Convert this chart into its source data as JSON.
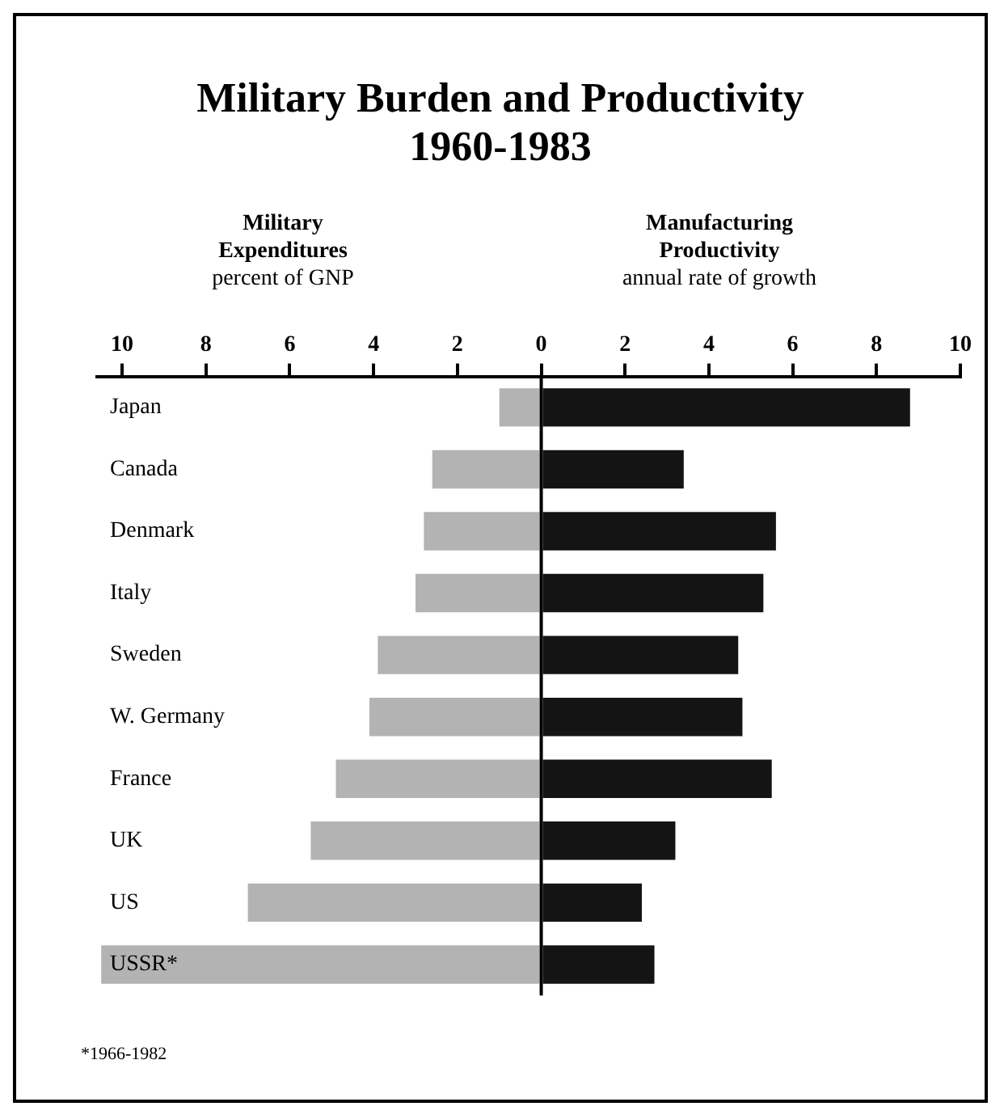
{
  "chart_data": {
    "type": "bar",
    "orientation": "horizontal",
    "stacked": true,
    "title": "Military Burden and Productivity\n1960-1983",
    "categories": [
      "Japan",
      "Canada",
      "Denmark",
      "Italy",
      "Sweden",
      "W. Germany",
      "France",
      "UK",
      "US",
      "USSR*"
    ],
    "series": [
      {
        "name": "Military Expenditures",
        "color": "#b3b3b3",
        "values": [
          -1.0,
          -2.6,
          -2.8,
          -3.0,
          -3.9,
          -4.1,
          -4.9,
          -5.5,
          -7.0,
          -10.5
        ]
      },
      {
        "name": "Manufacturing Productivity",
        "color": "#141414",
        "values": [
          8.8,
          3.4,
          5.6,
          5.3,
          4.7,
          4.8,
          5.5,
          3.2,
          2.4,
          2.7
        ]
      }
    ],
    "xlim": [
      -10.6,
      10
    ],
    "xticks": [
      {
        "value": -10,
        "label": "10"
      },
      {
        "value": -8,
        "label": "8"
      },
      {
        "value": -6,
        "label": "6"
      },
      {
        "value": -4,
        "label": "4"
      },
      {
        "value": -2,
        "label": "2"
      },
      0,
      2,
      4,
      6,
      8,
      10
    ],
    "ref_lines": [
      {
        "axis": "x",
        "value": 0,
        "color": "#000000"
      }
    ],
    "annotations": [
      "percent of GNP",
      "annual rate of growth",
      "*1966-1982"
    ],
    "grid": false,
    "legend": false
  }
}
